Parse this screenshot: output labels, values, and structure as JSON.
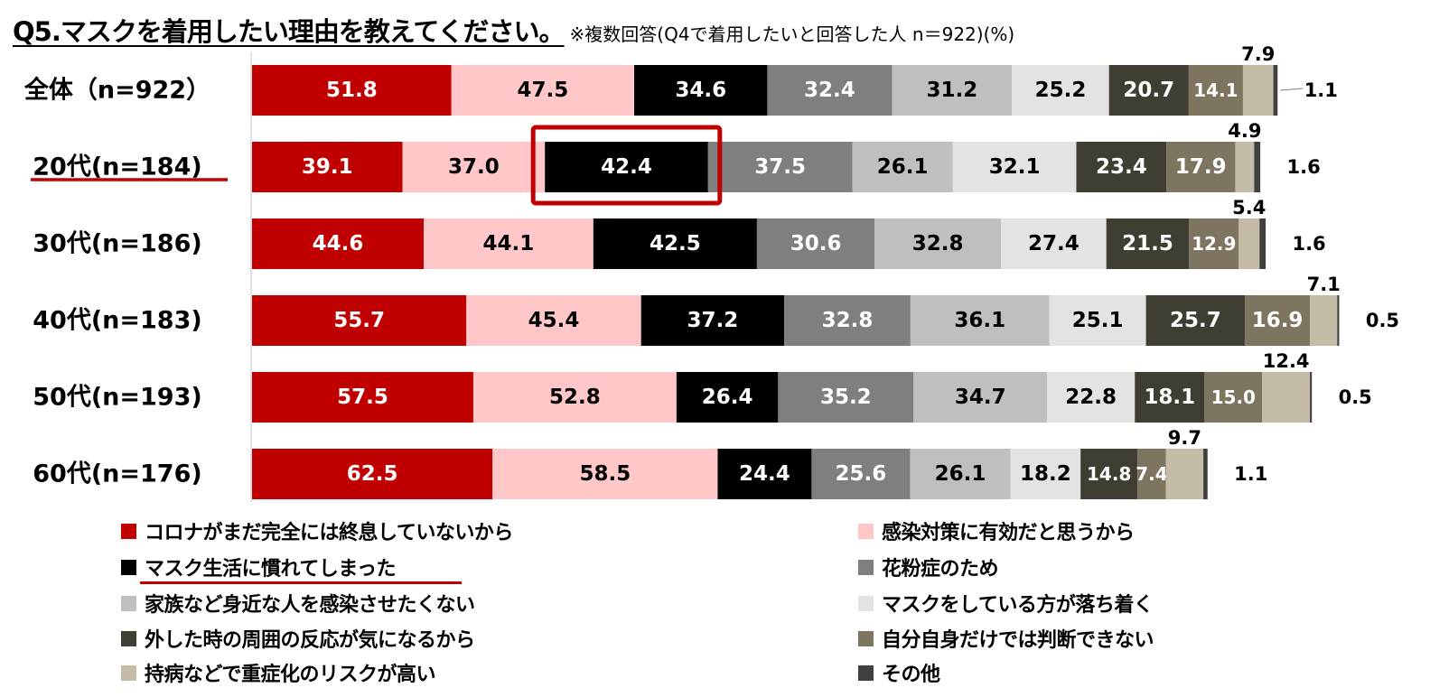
{
  "title": {
    "main": "Q5.マスクを着用したい理由を教えてください。",
    "note": "※複数回答(Q4で着用したいと回答した人 n＝922)(%)"
  },
  "chart_data": {
    "type": "bar",
    "orientation": "horizontal",
    "stacked": true,
    "title": "Q5.マスクを着用したい理由を教えてください。",
    "categories": [
      "全体（n=922）",
      "20代(n=184)",
      "30代(n=186)",
      "40代(n=183)",
      "50代(n=193)",
      "60代(n=176)"
    ],
    "highlight_row_index": 1,
    "highlight_series_index": 2,
    "series": [
      {
        "name": "コロナがまだ完全には終息していないから",
        "color": "#c00000",
        "text_color": "#ffffff",
        "values": [
          51.8,
          39.1,
          44.6,
          55.7,
          57.5,
          62.5
        ]
      },
      {
        "name": "感染対策に有効だと思うから",
        "color": "#ffc7c7",
        "text_color": "#000000",
        "values": [
          47.5,
          37.0,
          44.1,
          45.4,
          52.8,
          58.5
        ]
      },
      {
        "name": "マスク生活に慣れてしまった",
        "color": "#000000",
        "text_color": "#ffffff",
        "values": [
          34.6,
          42.4,
          42.5,
          37.2,
          26.4,
          24.4
        ]
      },
      {
        "name": "花粉症のため",
        "color": "#7f7f7f",
        "text_color": "#ffffff",
        "values": [
          32.4,
          37.5,
          30.6,
          32.8,
          35.2,
          25.6
        ]
      },
      {
        "name": "家族など身近な人を感染させたくない",
        "color": "#bfbfbf",
        "text_color": "#000000",
        "values": [
          31.2,
          26.1,
          32.8,
          36.1,
          34.7,
          26.1
        ]
      },
      {
        "name": "マスクをしている方が落ち着く",
        "color": "#e3e3e3",
        "text_color": "#000000",
        "values": [
          25.2,
          32.1,
          27.4,
          25.1,
          22.8,
          18.2
        ]
      },
      {
        "name": "外した時の周囲の反応が気になるから",
        "color": "#403d33",
        "text_color": "#ffffff",
        "values": [
          20.7,
          23.4,
          21.5,
          25.7,
          18.1,
          14.8
        ]
      },
      {
        "name": "自分自身だけでは判断できない",
        "color": "#7d7560",
        "text_color": "#ffffff",
        "values": [
          14.1,
          17.9,
          12.9,
          16.9,
          15.0,
          7.4
        ]
      },
      {
        "name": "持病などで重症化のリスクが高い",
        "color": "#c4bca6",
        "text_color": "#000000",
        "values": [
          7.9,
          4.9,
          5.4,
          7.1,
          12.4,
          9.7
        ]
      },
      {
        "name": "その他",
        "color": "#404040",
        "text_color": "#000000",
        "values": [
          1.1,
          1.6,
          1.6,
          0.5,
          0.5,
          1.1
        ]
      }
    ]
  }
}
